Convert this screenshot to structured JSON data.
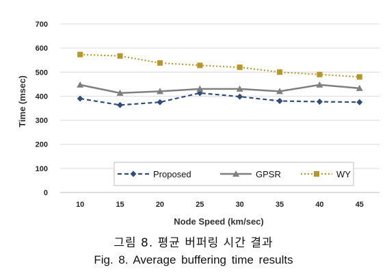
{
  "chart_data": {
    "type": "line",
    "title": "",
    "xlabel": "Node Speed (km/sec)",
    "ylabel": "Time (msec)",
    "categories": [
      "10",
      "15",
      "20",
      "25",
      "30",
      "35",
      "40",
      "45"
    ],
    "ylim": [
      0,
      700
    ],
    "yticks": [
      "0",
      "100",
      "200",
      "300",
      "400",
      "500",
      "600",
      "700"
    ],
    "grid": "horizontal",
    "legend_position": "bottom-inside",
    "series": [
      {
        "name": "Proposed",
        "values": [
          390,
          363,
          375,
          413,
          398,
          380,
          377,
          375
        ],
        "color": "#2e4d7b",
        "marker": "diamond",
        "line": "dashed"
      },
      {
        "name": "GPSR",
        "values": [
          447,
          413,
          420,
          430,
          430,
          420,
          447,
          433
        ],
        "color": "#7f7f7f",
        "marker": "triangle",
        "line": "solid"
      },
      {
        "name": "WY",
        "values": [
          573,
          567,
          538,
          528,
          520,
          500,
          490,
          480
        ],
        "color": "#b8962e",
        "marker": "square",
        "line": "dotted"
      }
    ]
  },
  "caption": {
    "korean": "그림 8. 평균 버퍼링 시간 결과",
    "english": "Fig. 8. Average buffering time results"
  }
}
